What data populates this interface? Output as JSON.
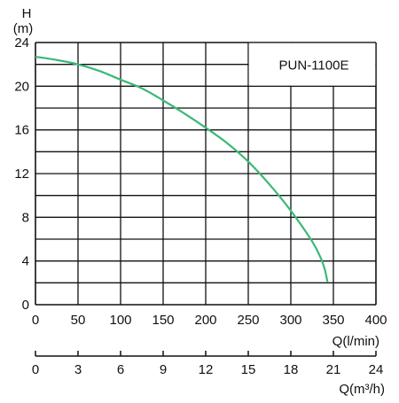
{
  "chart_data": {
    "type": "line",
    "model_label": "PUN-1100E",
    "y_axis": {
      "title_lines": [
        "H",
        "(m)"
      ],
      "ticks": [
        0,
        4,
        8,
        12,
        16,
        20,
        24
      ],
      "range": [
        0,
        24
      ]
    },
    "x_axis": {
      "title": "Q(l/min)",
      "ticks": [
        0,
        50,
        100,
        150,
        200,
        250,
        300,
        350,
        400
      ],
      "range": [
        0,
        400
      ]
    },
    "x_axis_secondary": {
      "title": "Q(m³/h)",
      "ticks": [
        0,
        3,
        6,
        9,
        12,
        15,
        18,
        21,
        24
      ],
      "range": [
        0,
        24
      ]
    },
    "grid": true,
    "series": [
      {
        "color": "#3cb878",
        "x": [
          0,
          25,
          50,
          75,
          100,
          125,
          150,
          175,
          200,
          225,
          250,
          275,
          300,
          325,
          335,
          340,
          343
        ],
        "y": [
          22.7,
          22.4,
          22.0,
          21.4,
          20.6,
          19.8,
          18.7,
          17.5,
          16.2,
          14.8,
          13.1,
          11.0,
          8.6,
          5.8,
          4.3,
          3.2,
          2.1
        ]
      }
    ]
  }
}
